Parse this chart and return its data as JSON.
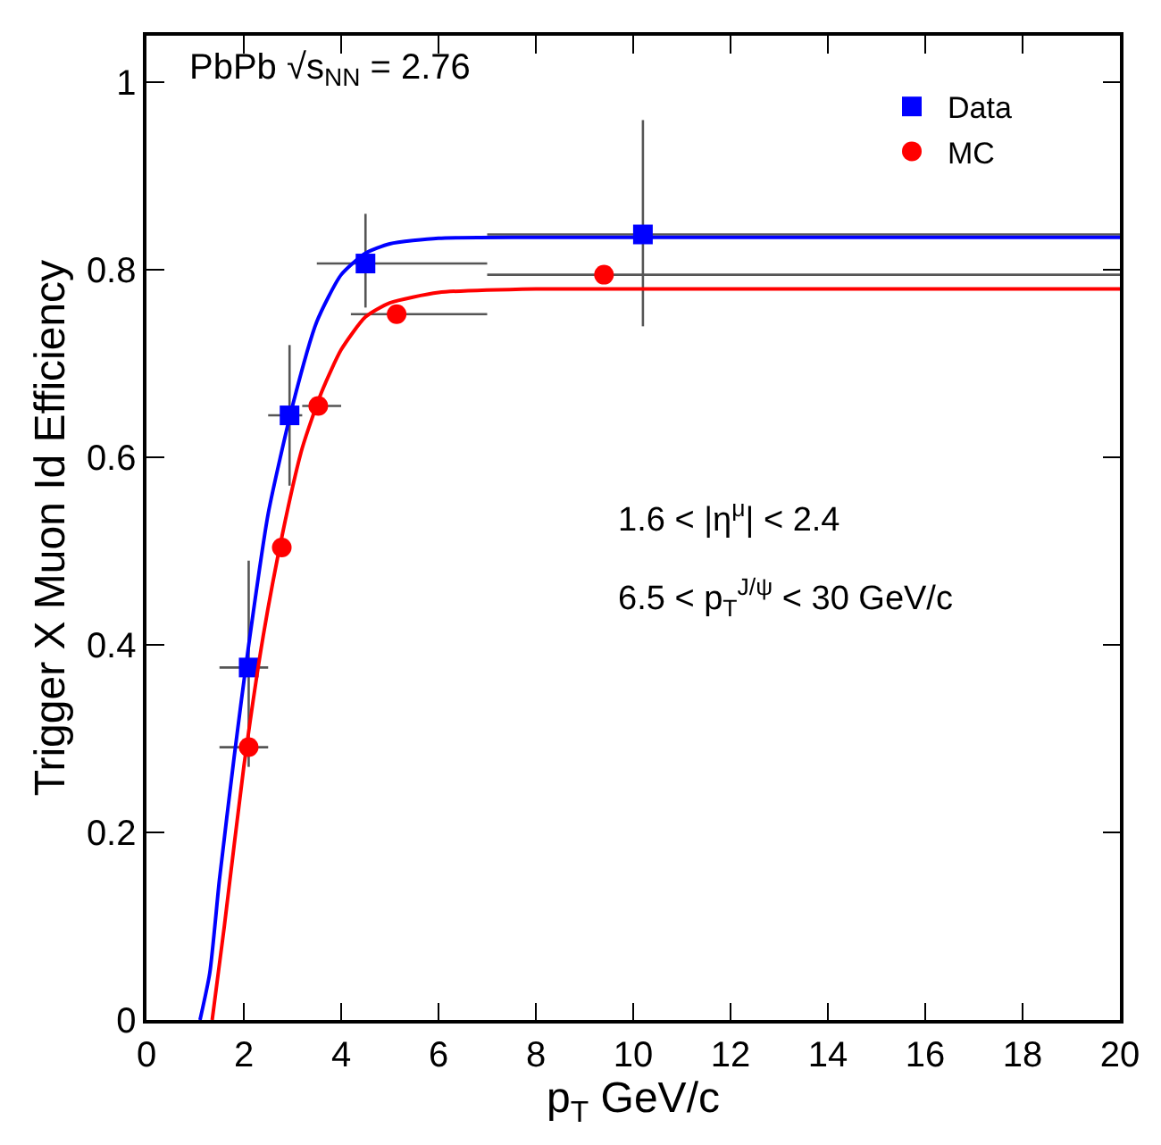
{
  "chart_data": {
    "type": "scatter",
    "xlabel": "p$_{T}$ GeV/c",
    "ylabel": "Trigger X Muon Id Efficiency",
    "annotations": [
      "PbPb √s$_{NN}$ = 2.76",
      "1.6 < |η$^{μ}$| < 2.4",
      "6.5 < p$_{T}$$^{J/ψ}$ < 30 GeV/c"
    ],
    "xlim": [
      0,
      20
    ],
    "xticks": [
      0,
      2,
      4,
      6,
      8,
      10,
      12,
      14,
      16,
      18,
      20
    ],
    "ylim": [
      0,
      1.05
    ],
    "yticks": [
      0,
      0.2,
      0.4,
      0.6,
      0.8,
      1
    ],
    "legend": "top right",
    "series": [
      {
        "name": "Data",
        "color": "#0000ff",
        "marker": "square",
        "x": [
          2.1,
          2.94,
          4.5,
          10.2
        ],
        "values": [
          0.376,
          0.645,
          0.807,
          0.838
        ],
        "errors": [
          [
            0.27,
            0.49
          ],
          [
            0.57,
            0.72
          ],
          [
            0.76,
            0.86
          ],
          [
            0.74,
            0.96
          ]
        ],
        "xerrors": [
          [
            1.5,
            2.5
          ],
          [
            2.5,
            3.2
          ],
          [
            3.5,
            7
          ],
          [
            7,
            20
          ]
        ]
      },
      {
        "name": "MC",
        "color": "#ff0000",
        "marker": "circle",
        "x": [
          2.1,
          2.78,
          3.53,
          5.14,
          9.4
        ],
        "values": [
          0.291,
          0.504,
          0.655,
          0.753,
          0.795
        ],
        "xerrors": [
          [
            1.5,
            2.5
          ],
          null,
          [
            3.2,
            4
          ],
          [
            4.2,
            7
          ],
          [
            7,
            20
          ]
        ]
      },
      {
        "type": "line",
        "color": "#0000ff",
        "marker": "none",
        "x": [
          1.1,
          1.3,
          1.5,
          1.8,
          2.1,
          2.5,
          3.0,
          3.5,
          4,
          4.5,
          5,
          6,
          8,
          20
        ],
        "values": [
          0,
          0.05,
          0.15,
          0.28,
          0.4,
          0.54,
          0.655,
          0.745,
          0.795,
          0.818,
          0.828,
          0.834,
          0.835,
          0.835
        ]
      },
      {
        "type": "line",
        "color": "#ff0000",
        "marker": "none",
        "x": [
          1.35,
          1.6,
          2,
          2.4,
          2.8,
          3.2,
          3.6,
          4,
          4.5,
          5,
          6,
          8,
          20
        ],
        "values": [
          0,
          0.1,
          0.27,
          0.41,
          0.52,
          0.61,
          0.67,
          0.715,
          0.75,
          0.765,
          0.776,
          0.78,
          0.78
        ]
      }
    ]
  }
}
